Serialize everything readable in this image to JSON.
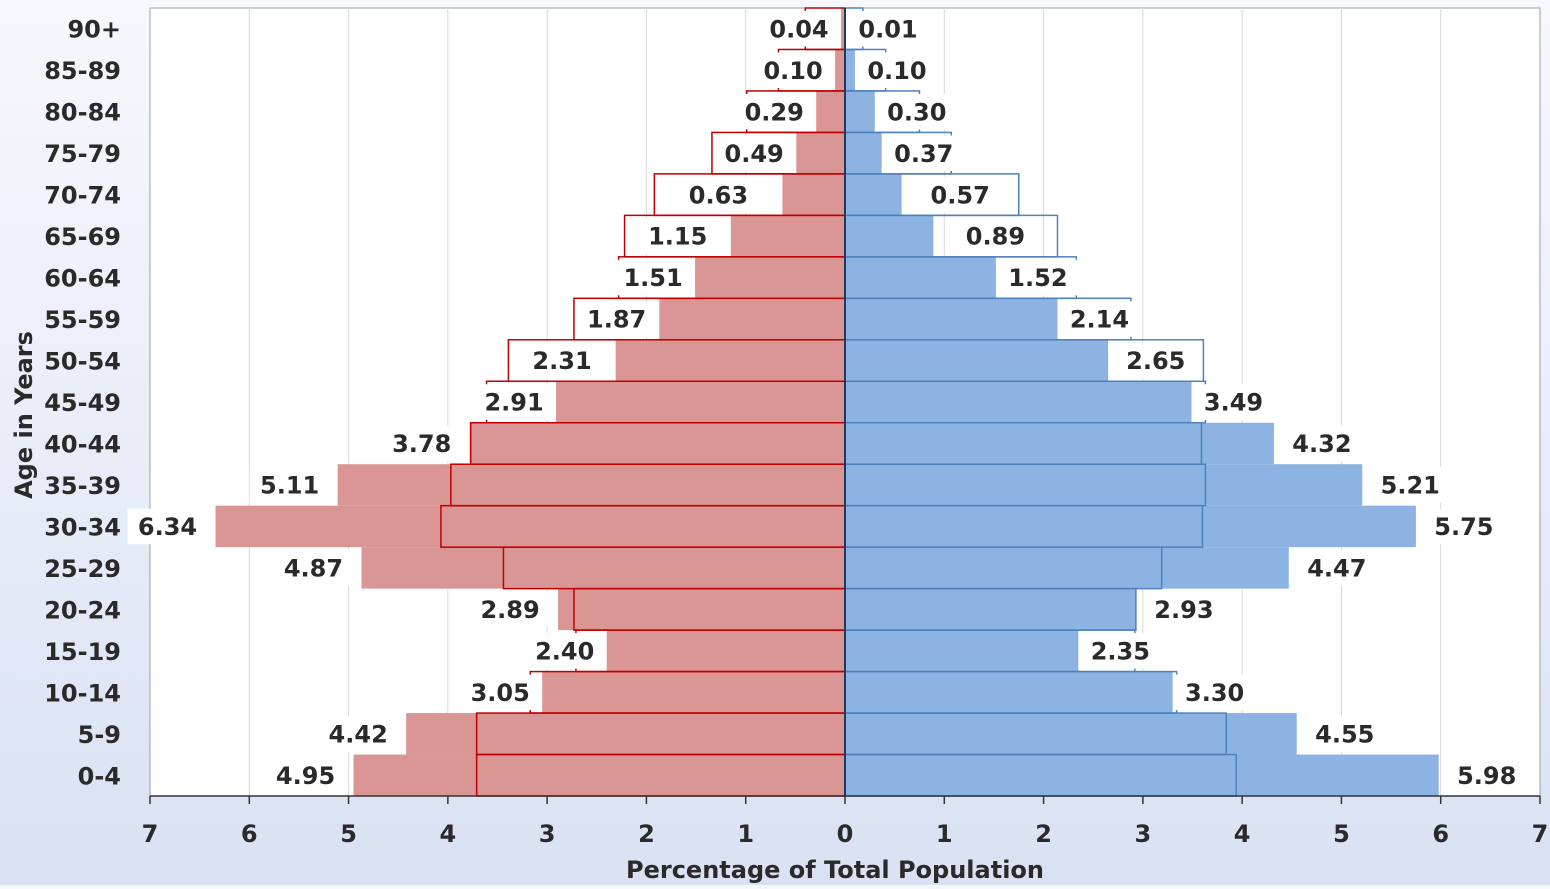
{
  "chart_data": {
    "type": "bar",
    "orientation": "horizontal",
    "layout": "population-pyramid",
    "ylabel": "Age in Years",
    "xlabel": "Percentage of Total Population",
    "xlim": [
      -7,
      7
    ],
    "xticks": [
      "7",
      "6",
      "5",
      "4",
      "3",
      "2",
      "1",
      "0",
      "1",
      "2",
      "3",
      "4",
      "5",
      "6",
      "7"
    ],
    "grid": true,
    "categories": [
      "90+",
      "85-89",
      "80-84",
      "75-79",
      "70-74",
      "65-69",
      "60-64",
      "55-59",
      "50-54",
      "45-49",
      "40-44",
      "35-39",
      "30-34",
      "25-29",
      "20-24",
      "15-19",
      "10-14",
      "5-9",
      "0-4"
    ],
    "series": [
      {
        "side": "left",
        "style": "filled",
        "color": "#da9694",
        "values": [
          0.04,
          0.1,
          0.29,
          0.49,
          0.63,
          1.15,
          1.51,
          1.87,
          2.31,
          2.91,
          3.78,
          5.11,
          6.34,
          4.87,
          2.89,
          2.4,
          3.05,
          4.42,
          4.95
        ],
        "labels": [
          "0.04",
          "0.10",
          "0.29",
          "0.49",
          "0.63",
          "1.15",
          "1.51",
          "1.87",
          "2.31",
          "2.91",
          "3.78",
          "5.11",
          "6.34",
          "4.87",
          "2.89",
          "2.40",
          "3.05",
          "4.42",
          "4.95"
        ]
      },
      {
        "side": "left",
        "style": "outline",
        "color": "#c00000",
        "values": [
          0.4,
          0.67,
          0.99,
          1.34,
          1.92,
          2.22,
          2.28,
          2.73,
          3.39,
          3.61,
          3.77,
          3.97,
          4.07,
          3.44,
          2.73,
          2.71,
          3.17,
          3.71,
          3.71
        ]
      },
      {
        "side": "right",
        "style": "filled",
        "color": "#8db3e2",
        "values": [
          0.01,
          0.1,
          0.3,
          0.37,
          0.57,
          0.89,
          1.52,
          2.14,
          2.65,
          3.49,
          4.32,
          5.21,
          5.75,
          4.47,
          2.93,
          2.35,
          3.3,
          4.55,
          5.98
        ],
        "labels": [
          "0.01",
          "0.10",
          "0.30",
          "0.37",
          "0.57",
          "0.89",
          "1.52",
          "2.14",
          "2.65",
          "3.49",
          "4.32",
          "5.21",
          "5.75",
          "4.47",
          "2.93",
          "2.35",
          "3.30",
          "4.55",
          "5.98"
        ]
      },
      {
        "side": "right",
        "style": "outline",
        "color": "#4f81bd",
        "values": [
          0.18,
          0.41,
          0.75,
          1.07,
          1.75,
          2.14,
          2.33,
          2.88,
          3.61,
          3.63,
          3.59,
          3.63,
          3.6,
          3.19,
          2.93,
          2.92,
          3.34,
          3.84,
          3.94
        ]
      }
    ]
  }
}
